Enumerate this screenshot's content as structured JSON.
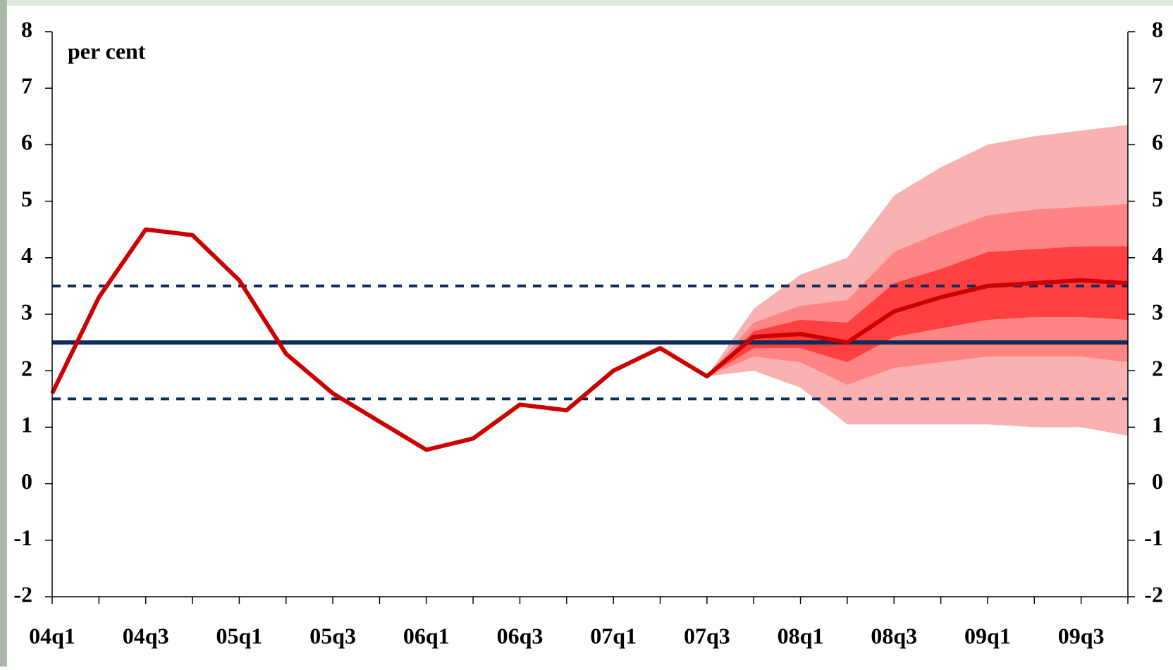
{
  "chart_data": {
    "type": "fan",
    "annotation": "per cent",
    "categories": [
      "04q1",
      null,
      "04q3",
      null,
      "05q1",
      null,
      "05q3",
      null,
      "06q1",
      null,
      "06q3",
      null,
      "07q1",
      null,
      "07q3",
      null,
      "08q1",
      null,
      "08q3",
      null,
      "09q1",
      null,
      "09q3",
      null
    ],
    "series": [
      {
        "color": "#cc0000",
        "values": [
          1.6,
          3.3,
          4.5,
          4.4,
          3.6,
          2.3,
          1.6,
          1.1,
          0.6,
          0.8,
          1.4,
          1.3,
          2.0,
          2.4,
          1.9,
          2.6,
          2.65,
          2.5,
          3.05,
          3.3,
          3.5,
          3.55,
          3.6,
          3.55
        ]
      }
    ],
    "bands": [
      {
        "color": "#f9b1b1",
        "upper": [
          null,
          null,
          null,
          null,
          null,
          null,
          null,
          null,
          null,
          null,
          null,
          null,
          null,
          null,
          1.9,
          3.1,
          3.7,
          4.0,
          5.1,
          5.6,
          6.0,
          6.15,
          6.25,
          6.35
        ],
        "lower": [
          null,
          null,
          null,
          null,
          null,
          null,
          null,
          null,
          null,
          null,
          null,
          null,
          null,
          null,
          1.9,
          2.0,
          1.7,
          1.05,
          1.05,
          1.05,
          1.05,
          1.0,
          1.0,
          0.85
        ]
      },
      {
        "color": "#ff8585",
        "upper": [
          null,
          null,
          null,
          null,
          null,
          null,
          null,
          null,
          null,
          null,
          null,
          null,
          null,
          null,
          1.9,
          2.85,
          3.15,
          3.25,
          4.1,
          4.45,
          4.75,
          4.85,
          4.9,
          4.95
        ],
        "lower": [
          null,
          null,
          null,
          null,
          null,
          null,
          null,
          null,
          null,
          null,
          null,
          null,
          null,
          null,
          1.9,
          2.25,
          2.15,
          1.75,
          2.05,
          2.15,
          2.25,
          2.25,
          2.25,
          2.15
        ]
      },
      {
        "color": "#ff4040",
        "upper": [
          null,
          null,
          null,
          null,
          null,
          null,
          null,
          null,
          null,
          null,
          null,
          null,
          null,
          null,
          1.9,
          2.7,
          2.9,
          2.85,
          3.55,
          3.8,
          4.1,
          4.15,
          4.2,
          4.2
        ],
        "lower": [
          null,
          null,
          null,
          null,
          null,
          null,
          null,
          null,
          null,
          null,
          null,
          null,
          null,
          null,
          1.9,
          2.4,
          2.4,
          2.15,
          2.6,
          2.75,
          2.9,
          2.95,
          2.95,
          2.9
        ]
      }
    ],
    "reference_lines": [
      {
        "value": 2.5,
        "style": "solid",
        "color": "#0d2c5c"
      },
      {
        "value": 3.5,
        "style": "dashed",
        "color": "#0d2c5c"
      },
      {
        "value": 1.5,
        "style": "dashed",
        "color": "#0d2c5c"
      }
    ],
    "ylim": [
      -2,
      8
    ],
    "yticks": [
      -2,
      -1,
      0,
      1,
      2,
      3,
      4,
      5,
      6,
      7,
      8
    ],
    "y2lim": [
      -2,
      8
    ],
    "y2ticks": [
      -2,
      -1,
      0,
      1,
      2,
      3,
      4,
      5,
      6,
      7,
      8
    ],
    "grid": false
  }
}
